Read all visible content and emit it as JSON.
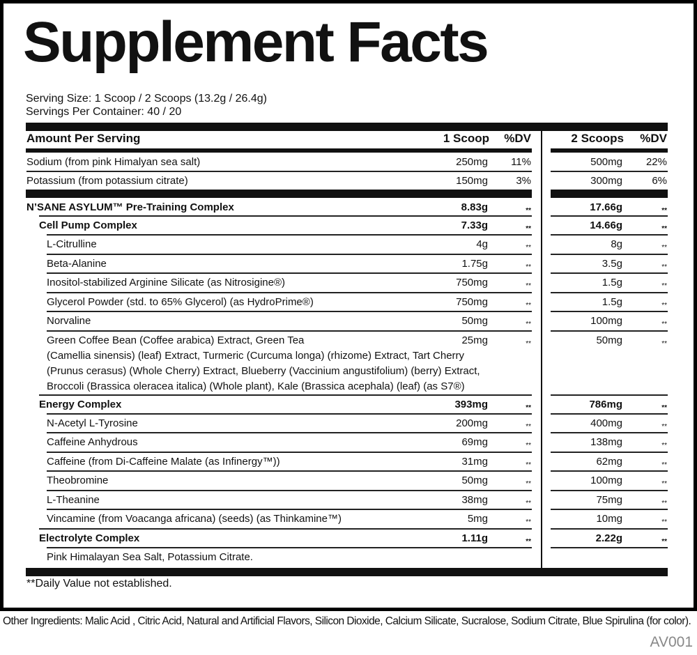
{
  "title": "Supplement Facts",
  "serving_size": "Serving Size: 1 Scoop / 2 Scoops (13.2g / 26.4g)",
  "servings_per_container": "Servings Per Container: 40 / 20",
  "header": {
    "amount": "Amount Per Serving",
    "col1": "1 Scoop",
    "dv1": "%DV",
    "col2": "2 Scoops",
    "dv2": "%DV"
  },
  "rows": [
    {
      "name": "Sodium (from pink Himalyan sea salt)",
      "v1": "250mg",
      "d1": "11%",
      "v2": "500mg",
      "d2": "22%",
      "level": 0,
      "bold": false
    },
    {
      "name": "Potassium (from potassium citrate)",
      "v1": "150mg",
      "d1": "3%",
      "v2": "300mg",
      "d2": "6%",
      "level": 0,
      "bold": false
    },
    {
      "name": "N’SANE ASYLUM™ Pre-Training Complex",
      "v1": "8.83g",
      "d1": "**",
      "v2": "17.66g",
      "d2": "**",
      "level": 0,
      "bold": true
    },
    {
      "name": "Cell Pump Complex",
      "v1": "7.33g",
      "d1": "**",
      "v2": "14.66g",
      "d2": "**",
      "level": 1,
      "bold": true
    },
    {
      "name": "L-Citrulline",
      "v1": "4g",
      "d1": "**",
      "v2": "8g",
      "d2": "**",
      "level": 2,
      "bold": false
    },
    {
      "name": "Beta-Alanine",
      "v1": "1.75g",
      "d1": "**",
      "v2": "3.5g",
      "d2": "**",
      "level": 2,
      "bold": false
    },
    {
      "name": "Inositol-stabilized Arginine Silicate (as Nitrosigine®)",
      "v1": "750mg",
      "d1": "**",
      "v2": "1.5g",
      "d2": "**",
      "level": 2,
      "bold": false
    },
    {
      "name": "Glycerol Powder (std. to 65% Glycerol) (as HydroPrime®)",
      "v1": "750mg",
      "d1": "**",
      "v2": "1.5g",
      "d2": "**",
      "level": 2,
      "bold": false
    },
    {
      "name": "Norvaline",
      "v1": "50mg",
      "d1": "**",
      "v2": "100mg",
      "d2": "**",
      "level": 2,
      "bold": false
    },
    {
      "name": "Green Coffee Bean (Coffee arabica) Extract, Green Tea\n(Camellia sinensis) (leaf) Extract, Turmeric (Curcuma longa) (rhizome) Extract, Tart Cherry\n(Prunus cerasus) (Whole Cherry) Extract, Blueberry (Vaccinium angustifolium) (berry) Extract,\nBroccoli (Brassica oleracea italica) (Whole plant), Kale (Brassica acephala) (leaf) (as S7®)",
      "v1": "25mg",
      "d1": "**",
      "v2": "50mg",
      "d2": "**",
      "level": 2,
      "bold": false
    },
    {
      "name": "Energy Complex",
      "v1": "393mg",
      "d1": "**",
      "v2": "786mg",
      "d2": "**",
      "level": 1,
      "bold": true
    },
    {
      "name": "N-Acetyl L-Tyrosine",
      "v1": "200mg",
      "d1": "**",
      "v2": "400mg",
      "d2": "**",
      "level": 2,
      "bold": false
    },
    {
      "name": "Caffeine Anhydrous",
      "v1": "69mg",
      "d1": "**",
      "v2": "138mg",
      "d2": "**",
      "level": 2,
      "bold": false
    },
    {
      "name": "Caffeine (from Di-Caffeine Malate (as Infinergy™))",
      "v1": "31mg",
      "d1": "**",
      "v2": "62mg",
      "d2": "**",
      "level": 2,
      "bold": false
    },
    {
      "name": "Theobromine",
      "v1": "50mg",
      "d1": "**",
      "v2": "100mg",
      "d2": "**",
      "level": 2,
      "bold": false
    },
    {
      "name": "L-Theanine",
      "v1": "38mg",
      "d1": "**",
      "v2": "75mg",
      "d2": "**",
      "level": 2,
      "bold": false
    },
    {
      "name": "Vincamine (from Voacanga africana) (seeds) (as Thinkamine™)",
      "v1": "5mg",
      "d1": "**",
      "v2": "10mg",
      "d2": "**",
      "level": 2,
      "bold": false
    },
    {
      "name": "Electrolyte Complex",
      "v1": "1.11g",
      "d1": "**",
      "v2": "2.22g",
      "d2": "**",
      "level": 1,
      "bold": true
    },
    {
      "name": "Pink Himalayan Sea Salt, Potassium Citrate.",
      "v1": "",
      "d1": "",
      "v2": "",
      "d2": "",
      "level": 2,
      "bold": false
    }
  ],
  "footnote": "**Daily Value not established.",
  "other_ingredients": "Other Ingredients: Malic Acid , Citric Acid, Natural and Artificial Flavors, Silicon Dioxide, Calcium Silicate, Sucralose, Sodium Citrate, Blue Spirulina (for color).",
  "code": "AV001"
}
